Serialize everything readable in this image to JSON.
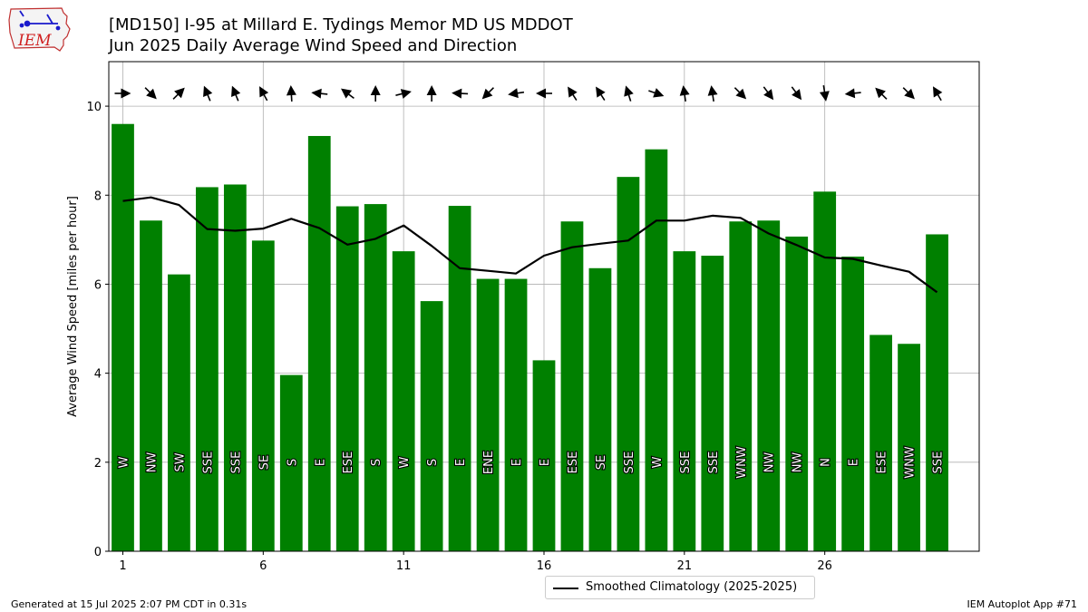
{
  "logo": {
    "text": "IEM"
  },
  "title": "[MD150] I-95 at Millard E. Tydings Memor MD US MDDOT",
  "subtitle": "Jun 2025 Daily Average Wind Speed and Direction",
  "footer_left": "Generated at 15 Jul 2025 2:07 PM CDT in 0.31s",
  "footer_right": "IEM Autoplot App #71",
  "colors": {
    "bar": "#008000",
    "climo_line": "#000000",
    "grid": "#b0b0b0"
  },
  "chart_data": {
    "type": "bar",
    "ylabel": "Average Wind Speed [miles per hour]",
    "xlabel": "",
    "ylim": [
      0,
      11
    ],
    "xlim": [
      0.5,
      31.5
    ],
    "yticks": [
      0,
      2,
      4,
      6,
      8,
      10
    ],
    "xticks": [
      1,
      6,
      11,
      16,
      21,
      26
    ],
    "grid": true,
    "legend_position": "bottom-center",
    "days": [
      1,
      2,
      3,
      4,
      5,
      6,
      7,
      8,
      9,
      10,
      11,
      12,
      13,
      14,
      15,
      16,
      17,
      18,
      19,
      20,
      21,
      22,
      23,
      24,
      25,
      26,
      27,
      28,
      29,
      30
    ],
    "speed": [
      9.6,
      7.43,
      6.22,
      8.18,
      8.24,
      6.98,
      3.96,
      9.33,
      7.75,
      7.8,
      6.74,
      5.62,
      7.76,
      6.12,
      6.12,
      4.29,
      7.41,
      6.36,
      8.41,
      9.03,
      6.74,
      6.64,
      7.41,
      7.43,
      7.07,
      8.08,
      6.62,
      4.86,
      4.66,
      7.12
    ],
    "direction": [
      "W",
      "NW",
      "SW",
      "SSE",
      "SSE",
      "SE",
      "S",
      "E",
      "ESE",
      "S",
      "W",
      "S",
      "E",
      "ENE",
      "E",
      "E",
      "ESE",
      "SE",
      "SSE",
      "W",
      "SSE",
      "SSE",
      "WNW",
      "NW",
      "NW",
      "N",
      "E",
      "ESE",
      "WNW",
      "SSE"
    ],
    "series": [
      {
        "name": "Smoothed Climatology (2025-2025)",
        "values": [
          7.87,
          7.95,
          7.78,
          7.24,
          7.2,
          7.25,
          7.47,
          7.26,
          6.89,
          7.02,
          7.32,
          6.86,
          6.36,
          6.3,
          6.24,
          6.64,
          6.83,
          6.91,
          6.98,
          7.43,
          7.43,
          7.54,
          7.49,
          7.14,
          6.88,
          6.6,
          6.57,
          6.42,
          6.28,
          5.82
        ]
      }
    ],
    "vectors": [
      {
        "u": 1.0,
        "v": 0.0
      },
      {
        "u": 0.7,
        "v": -0.7
      },
      {
        "u": 0.7,
        "v": 0.7
      },
      {
        "u": -0.38,
        "v": 0.92
      },
      {
        "u": -0.38,
        "v": 0.92
      },
      {
        "u": -0.48,
        "v": 0.88
      },
      {
        "u": -0.06,
        "v": 1.0
      },
      {
        "u": -1.0,
        "v": 0.1
      },
      {
        "u": -0.8,
        "v": 0.6
      },
      {
        "u": 0.0,
        "v": 1.0
      },
      {
        "u": 1.0,
        "v": 0.25
      },
      {
        "u": 0.0,
        "v": 1.0
      },
      {
        "u": -1.0,
        "v": 0.05
      },
      {
        "u": -0.7,
        "v": -0.7
      },
      {
        "u": -1.0,
        "v": -0.15
      },
      {
        "u": -1.0,
        "v": 0.0
      },
      {
        "u": -0.55,
        "v": 0.85
      },
      {
        "u": -0.55,
        "v": 0.85
      },
      {
        "u": -0.3,
        "v": 0.95
      },
      {
        "u": 1.0,
        "v": -0.35
      },
      {
        "u": -0.15,
        "v": 0.99
      },
      {
        "u": -0.15,
        "v": 0.99
      },
      {
        "u": 0.7,
        "v": -0.7
      },
      {
        "u": 0.6,
        "v": -0.8
      },
      {
        "u": 0.6,
        "v": -0.8
      },
      {
        "u": 0.15,
        "v": -0.99
      },
      {
        "u": -1.0,
        "v": -0.1
      },
      {
        "u": -0.7,
        "v": 0.7
      },
      {
        "u": 0.7,
        "v": -0.7
      },
      {
        "u": -0.5,
        "v": 0.85
      }
    ]
  }
}
